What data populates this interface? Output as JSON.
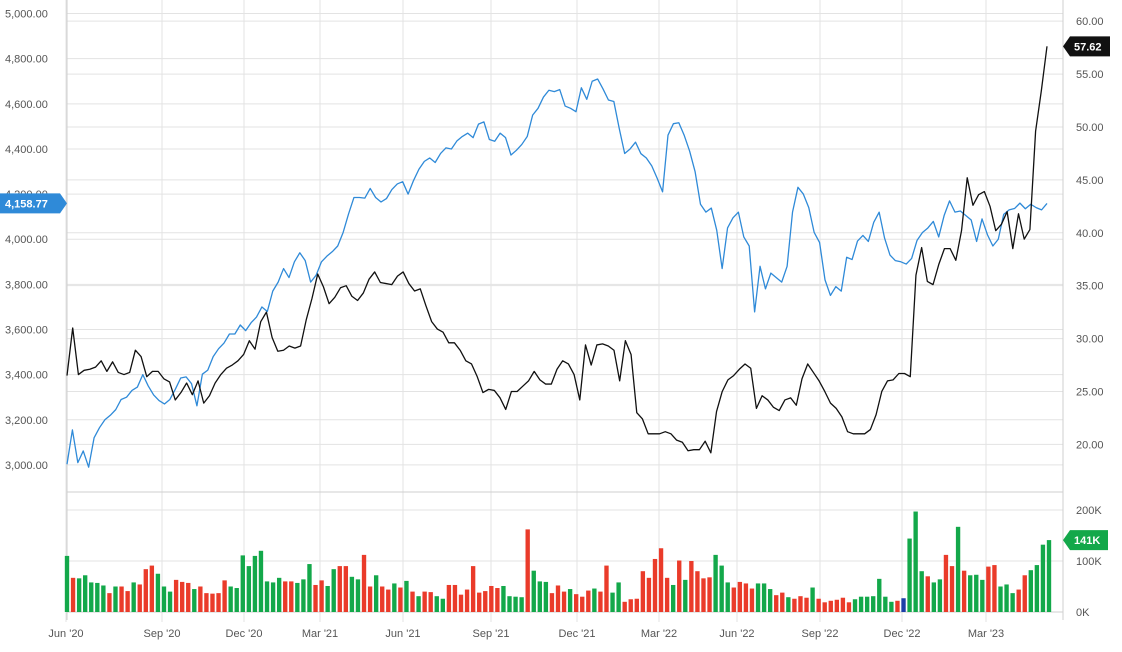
{
  "chart_data": {
    "type": "line",
    "x_ticks": [
      "Jun '20",
      "Sep '20",
      "Dec '20",
      "Mar '21",
      "Jun '21",
      "Sep '21",
      "Dec '21",
      "Mar '22",
      "Jun '22",
      "Sep '22",
      "Dec '22",
      "Mar '23"
    ],
    "left_axis": {
      "ticks": [
        "3,000.00",
        "3,200.00",
        "3,400.00",
        "3,600.00",
        "3,800.00",
        "4,000.00",
        "4,200.00",
        "4,400.00",
        "4,600.00",
        "4,800.00",
        "5,000.00"
      ],
      "range": [
        2880,
        5060
      ]
    },
    "right_axis": {
      "ticks": [
        "20.00",
        "25.00",
        "30.00",
        "35.00",
        "40.00",
        "45.00",
        "50.00",
        "55.00",
        "60.00"
      ],
      "range": [
        15.5,
        62
      ]
    },
    "volume_axis": {
      "ticks": [
        "200K",
        "100K",
        "0K"
      ],
      "range": [
        0,
        200000
      ]
    },
    "last_values": {
      "index": "4,158.77",
      "stock": "57.62",
      "volume": "141K"
    },
    "colors": {
      "index_line": "#2f8ad8",
      "stock_line": "#111111",
      "volume_up": "#13a84a",
      "volume_down": "#ea3b2a",
      "volume_neutral": "#1c3fa8",
      "index_badge": "#2f8ad8",
      "stock_badge": "#111111",
      "volume_badge": "#13a84a",
      "grid": "#e3e3e3"
    },
    "series": [
      {
        "axis": "left",
        "values": [
          3003,
          3155,
          3010,
          3062,
          2990,
          3120,
          3165,
          3200,
          3220,
          3245,
          3290,
          3300,
          3330,
          3345,
          3400,
          3350,
          3310,
          3285,
          3270,
          3290,
          3335,
          3385,
          3390,
          3360,
          3262,
          3402,
          3420,
          3480,
          3515,
          3540,
          3580,
          3580,
          3620,
          3595,
          3630,
          3655,
          3700,
          3680,
          3770,
          3810,
          3870,
          3830,
          3900,
          3940,
          3905,
          3810,
          3840,
          3900,
          3925,
          3945,
          3970,
          4030,
          4112,
          4185,
          4185,
          4182,
          4225,
          4185,
          4165,
          4180,
          4220,
          4245,
          4255,
          4200,
          4260,
          4310,
          4345,
          4360,
          4340,
          4380,
          4405,
          4400,
          4435,
          4455,
          4470,
          4450,
          4510,
          4520,
          4442,
          4434,
          4470,
          4450,
          4373,
          4394,
          4420,
          4455,
          4550,
          4580,
          4630,
          4660,
          4654,
          4663,
          4590,
          4580,
          4565,
          4671,
          4620,
          4700,
          4710,
          4666,
          4617,
          4610,
          4490,
          4380,
          4400,
          4430,
          4379,
          4360,
          4325,
          4270,
          4210,
          4461,
          4512,
          4516,
          4460,
          4390,
          4300,
          4155,
          4120,
          4138,
          4040,
          3870,
          4050,
          4095,
          4120,
          4010,
          3970,
          3678,
          3880,
          3780,
          3850,
          3830,
          3810,
          3880,
          4120,
          4230,
          4200,
          4140,
          4030,
          3985,
          3820,
          3751,
          3790,
          3770,
          3920,
          3910,
          3992,
          4017,
          3990,
          4075,
          4120,
          4005,
          3930,
          3905,
          3900,
          3890,
          3915,
          3995,
          4030,
          4050,
          4079,
          4010,
          4105,
          4170,
          4120,
          4125,
          4105,
          4085,
          3990,
          4090,
          4020,
          3970,
          4000,
          4110,
          4130,
          4136,
          4160,
          4135,
          4155,
          4140,
          4130,
          4158.77
        ],
        "x_range": [
          0,
          186
        ]
      },
      {
        "axis": "right",
        "values": [
          26.5,
          31.0,
          26.6,
          27.0,
          27.1,
          27.3,
          27.9,
          26.9,
          27.8,
          26.8,
          26.6,
          26.8,
          28.9,
          28.3,
          26.4,
          26.9,
          26.9,
          26.2,
          25.9,
          24.2,
          24.9,
          25.8,
          24.7,
          26.0,
          23.9,
          24.6,
          25.8,
          26.6,
          27.2,
          27.5,
          27.9,
          28.5,
          29.8,
          29.0,
          31.6,
          32.5,
          30.1,
          28.8,
          28.9,
          29.3,
          29.1,
          29.3,
          31.8,
          33.8,
          36.1,
          34.9,
          33.3,
          33.9,
          34.8,
          35.0,
          34.0,
          33.6,
          34.3,
          35.6,
          36.3,
          35.3,
          35.2,
          35.1,
          35.9,
          36.3,
          35.2,
          34.5,
          34.7,
          33.1,
          31.6,
          30.9,
          30.6,
          29.6,
          29.6,
          28.9,
          27.9,
          27.6,
          26.4,
          24.9,
          25.2,
          25.1,
          24.4,
          23.3,
          25.0,
          25.0,
          25.5,
          26.0,
          26.9,
          26.1,
          25.7,
          25.7,
          27.1,
          27.9,
          27.6,
          26.6,
          24.2,
          29.4,
          27.5,
          29.4,
          29.5,
          29.3,
          28.9,
          26.0,
          29.8,
          28.5,
          23.0,
          22.4,
          21.0,
          21.0,
          21.0,
          21.2,
          21.0,
          20.4,
          20.2,
          19.4,
          19.5,
          19.5,
          20.3,
          19.2,
          23.1,
          25.0,
          26.1,
          26.5,
          27.1,
          27.6,
          27.2,
          23.4,
          24.6,
          24.2,
          23.5,
          23.2,
          24.2,
          24.4,
          23.7,
          26.2,
          27.6,
          26.8,
          26.0,
          25.0,
          23.9,
          23.4,
          22.6,
          21.2,
          21.0,
          21.0,
          21.0,
          21.4,
          22.8,
          25.0,
          26.0,
          26.1,
          26.7,
          26.7,
          26.4,
          36.0,
          38.6,
          35.4,
          35.1,
          37.0,
          38.5,
          38.5,
          37.4,
          40.2,
          45.2,
          42.6,
          43.6,
          43.9,
          42.5,
          40.2,
          40.8,
          42.0,
          38.5,
          41.8,
          39.4,
          40.3,
          49.6,
          53.4,
          57.62
        ],
        "x_range": [
          0,
          173
        ]
      }
    ],
    "volume_bars": [
      {
        "v": 110000,
        "c": "up"
      },
      {
        "v": 67000,
        "c": "down"
      },
      {
        "v": 66000,
        "c": "up"
      },
      {
        "v": 72000,
        "c": "up"
      },
      {
        "v": 58000,
        "c": "up"
      },
      {
        "v": 57000,
        "c": "up"
      },
      {
        "v": 52000,
        "c": "up"
      },
      {
        "v": 37000,
        "c": "down"
      },
      {
        "v": 50000,
        "c": "up"
      },
      {
        "v": 50000,
        "c": "down"
      },
      {
        "v": 41000,
        "c": "down"
      },
      {
        "v": 58000,
        "c": "up"
      },
      {
        "v": 54000,
        "c": "down"
      },
      {
        "v": 84000,
        "c": "down"
      },
      {
        "v": 91000,
        "c": "down"
      },
      {
        "v": 75000,
        "c": "up"
      },
      {
        "v": 50000,
        "c": "up"
      },
      {
        "v": 40000,
        "c": "up"
      },
      {
        "v": 63000,
        "c": "down"
      },
      {
        "v": 59000,
        "c": "down"
      },
      {
        "v": 57000,
        "c": "down"
      },
      {
        "v": 45000,
        "c": "up"
      },
      {
        "v": 50000,
        "c": "down"
      },
      {
        "v": 37000,
        "c": "down"
      },
      {
        "v": 36000,
        "c": "down"
      },
      {
        "v": 37000,
        "c": "down"
      },
      {
        "v": 62000,
        "c": "down"
      },
      {
        "v": 50000,
        "c": "up"
      },
      {
        "v": 47000,
        "c": "up"
      },
      {
        "v": 111000,
        "c": "up"
      },
      {
        "v": 90000,
        "c": "up"
      },
      {
        "v": 110000,
        "c": "up"
      },
      {
        "v": 120000,
        "c": "up"
      },
      {
        "v": 60000,
        "c": "up"
      },
      {
        "v": 58000,
        "c": "up"
      },
      {
        "v": 67000,
        "c": "up"
      },
      {
        "v": 60000,
        "c": "down"
      },
      {
        "v": 60000,
        "c": "down"
      },
      {
        "v": 57000,
        "c": "up"
      },
      {
        "v": 64000,
        "c": "up"
      },
      {
        "v": 94000,
        "c": "up"
      },
      {
        "v": 53000,
        "c": "down"
      },
      {
        "v": 62000,
        "c": "down"
      },
      {
        "v": 51000,
        "c": "up"
      },
      {
        "v": 84000,
        "c": "up"
      },
      {
        "v": 90000,
        "c": "down"
      },
      {
        "v": 90000,
        "c": "down"
      },
      {
        "v": 69000,
        "c": "up"
      },
      {
        "v": 64000,
        "c": "up"
      },
      {
        "v": 112000,
        "c": "down"
      },
      {
        "v": 50000,
        "c": "down"
      },
      {
        "v": 72000,
        "c": "up"
      },
      {
        "v": 50000,
        "c": "down"
      },
      {
        "v": 44000,
        "c": "down"
      },
      {
        "v": 56000,
        "c": "up"
      },
      {
        "v": 48000,
        "c": "down"
      },
      {
        "v": 61000,
        "c": "up"
      },
      {
        "v": 40000,
        "c": "down"
      },
      {
        "v": 31000,
        "c": "up"
      },
      {
        "v": 40000,
        "c": "down"
      },
      {
        "v": 39000,
        "c": "down"
      },
      {
        "v": 31000,
        "c": "up"
      },
      {
        "v": 26000,
        "c": "up"
      },
      {
        "v": 53000,
        "c": "down"
      },
      {
        "v": 53000,
        "c": "down"
      },
      {
        "v": 34000,
        "c": "down"
      },
      {
        "v": 44000,
        "c": "down"
      },
      {
        "v": 90000,
        "c": "down"
      },
      {
        "v": 38000,
        "c": "down"
      },
      {
        "v": 41000,
        "c": "down"
      },
      {
        "v": 51000,
        "c": "down"
      },
      {
        "v": 47000,
        "c": "down"
      },
      {
        "v": 51000,
        "c": "up"
      },
      {
        "v": 31000,
        "c": "up"
      },
      {
        "v": 30000,
        "c": "up"
      },
      {
        "v": 29000,
        "c": "up"
      },
      {
        "v": 162000,
        "c": "down"
      },
      {
        "v": 81000,
        "c": "up"
      },
      {
        "v": 60000,
        "c": "up"
      },
      {
        "v": 59000,
        "c": "up"
      },
      {
        "v": 37000,
        "c": "down"
      },
      {
        "v": 52000,
        "c": "down"
      },
      {
        "v": 40000,
        "c": "down"
      },
      {
        "v": 45000,
        "c": "up"
      },
      {
        "v": 35000,
        "c": "down"
      },
      {
        "v": 30000,
        "c": "down"
      },
      {
        "v": 42000,
        "c": "down"
      },
      {
        "v": 46000,
        "c": "up"
      },
      {
        "v": 40000,
        "c": "down"
      },
      {
        "v": 91000,
        "c": "down"
      },
      {
        "v": 38000,
        "c": "up"
      },
      {
        "v": 58000,
        "c": "up"
      },
      {
        "v": 20000,
        "c": "down"
      },
      {
        "v": 25000,
        "c": "down"
      },
      {
        "v": 26000,
        "c": "down"
      },
      {
        "v": 80000,
        "c": "down"
      },
      {
        "v": 67000,
        "c": "down"
      },
      {
        "v": 104000,
        "c": "down"
      },
      {
        "v": 125000,
        "c": "down"
      },
      {
        "v": 67000,
        "c": "down"
      },
      {
        "v": 53000,
        "c": "up"
      },
      {
        "v": 101000,
        "c": "down"
      },
      {
        "v": 63000,
        "c": "up"
      },
      {
        "v": 100000,
        "c": "down"
      },
      {
        "v": 80000,
        "c": "down"
      },
      {
        "v": 66000,
        "c": "down"
      },
      {
        "v": 68000,
        "c": "down"
      },
      {
        "v": 112000,
        "c": "up"
      },
      {
        "v": 91000,
        "c": "up"
      },
      {
        "v": 58000,
        "c": "up"
      },
      {
        "v": 48000,
        "c": "down"
      },
      {
        "v": 59000,
        "c": "down"
      },
      {
        "v": 56000,
        "c": "down"
      },
      {
        "v": 46000,
        "c": "down"
      },
      {
        "v": 56000,
        "c": "up"
      },
      {
        "v": 56000,
        "c": "up"
      },
      {
        "v": 45000,
        "c": "up"
      },
      {
        "v": 33000,
        "c": "down"
      },
      {
        "v": 38000,
        "c": "down"
      },
      {
        "v": 29000,
        "c": "up"
      },
      {
        "v": 26000,
        "c": "down"
      },
      {
        "v": 31000,
        "c": "down"
      },
      {
        "v": 28000,
        "c": "down"
      },
      {
        "v": 48000,
        "c": "up"
      },
      {
        "v": 26000,
        "c": "down"
      },
      {
        "v": 19000,
        "c": "down"
      },
      {
        "v": 22000,
        "c": "down"
      },
      {
        "v": 24000,
        "c": "down"
      },
      {
        "v": 28000,
        "c": "down"
      },
      {
        "v": 19000,
        "c": "down"
      },
      {
        "v": 25000,
        "c": "up"
      },
      {
        "v": 30000,
        "c": "up"
      },
      {
        "v": 30000,
        "c": "up"
      },
      {
        "v": 31000,
        "c": "up"
      },
      {
        "v": 65000,
        "c": "up"
      },
      {
        "v": 30000,
        "c": "up"
      },
      {
        "v": 20000,
        "c": "up"
      },
      {
        "v": 22000,
        "c": "down"
      },
      {
        "v": 27000,
        "c": "neutral"
      },
      {
        "v": 144000,
        "c": "up"
      },
      {
        "v": 197000,
        "c": "up"
      },
      {
        "v": 80000,
        "c": "up"
      },
      {
        "v": 70000,
        "c": "down"
      },
      {
        "v": 58000,
        "c": "up"
      },
      {
        "v": 64000,
        "c": "up"
      },
      {
        "v": 112000,
        "c": "down"
      },
      {
        "v": 90000,
        "c": "down"
      },
      {
        "v": 167000,
        "c": "up"
      },
      {
        "v": 81000,
        "c": "down"
      },
      {
        "v": 72000,
        "c": "up"
      },
      {
        "v": 73000,
        "c": "up"
      },
      {
        "v": 63000,
        "c": "up"
      },
      {
        "v": 89000,
        "c": "down"
      },
      {
        "v": 92000,
        "c": "down"
      },
      {
        "v": 50000,
        "c": "up"
      },
      {
        "v": 54000,
        "c": "up"
      },
      {
        "v": 37000,
        "c": "up"
      },
      {
        "v": 44000,
        "c": "down"
      },
      {
        "v": 72000,
        "c": "down"
      },
      {
        "v": 82000,
        "c": "up"
      },
      {
        "v": 92000,
        "c": "up"
      },
      {
        "v": 132000,
        "c": "up"
      },
      {
        "v": 141000,
        "c": "up"
      }
    ]
  }
}
